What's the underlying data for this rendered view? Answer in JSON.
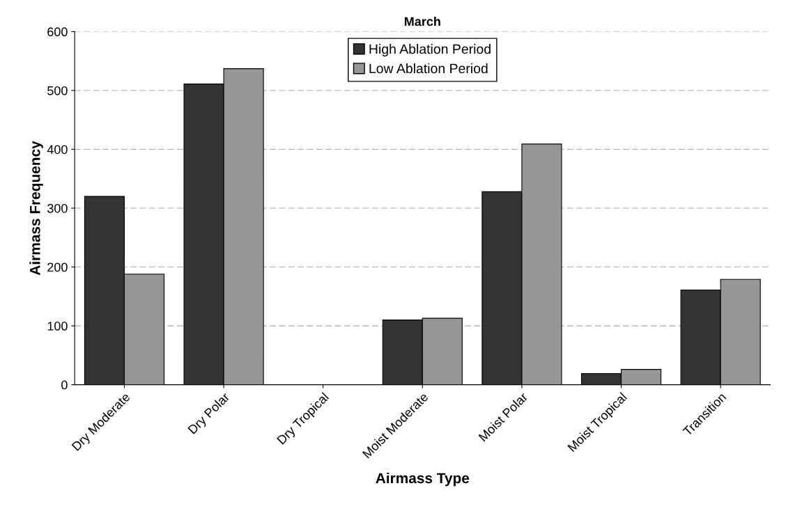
{
  "chart_data": {
    "type": "bar",
    "title": "March",
    "xlabel": "Airmass Type",
    "ylabel": "Airmass Frequency",
    "categories": [
      "Dry Moderate",
      "Dry Polar",
      "Dry Tropical",
      "Moist Moderate",
      "Moist Polar",
      "Moist Tropical",
      "Transition"
    ],
    "series": [
      {
        "name": "High Ablation Period",
        "color": "#333333",
        "values": [
          320,
          511,
          0,
          110,
          328,
          19,
          161
        ]
      },
      {
        "name": "Low Ablation Period",
        "color": "#969696",
        "values": [
          188,
          537,
          0,
          113,
          409,
          26,
          179
        ]
      }
    ],
    "ylim": [
      0,
      600
    ],
    "yticks": [
      0,
      100,
      200,
      300,
      400,
      500,
      600
    ],
    "grid": "y",
    "legend": "top"
  }
}
